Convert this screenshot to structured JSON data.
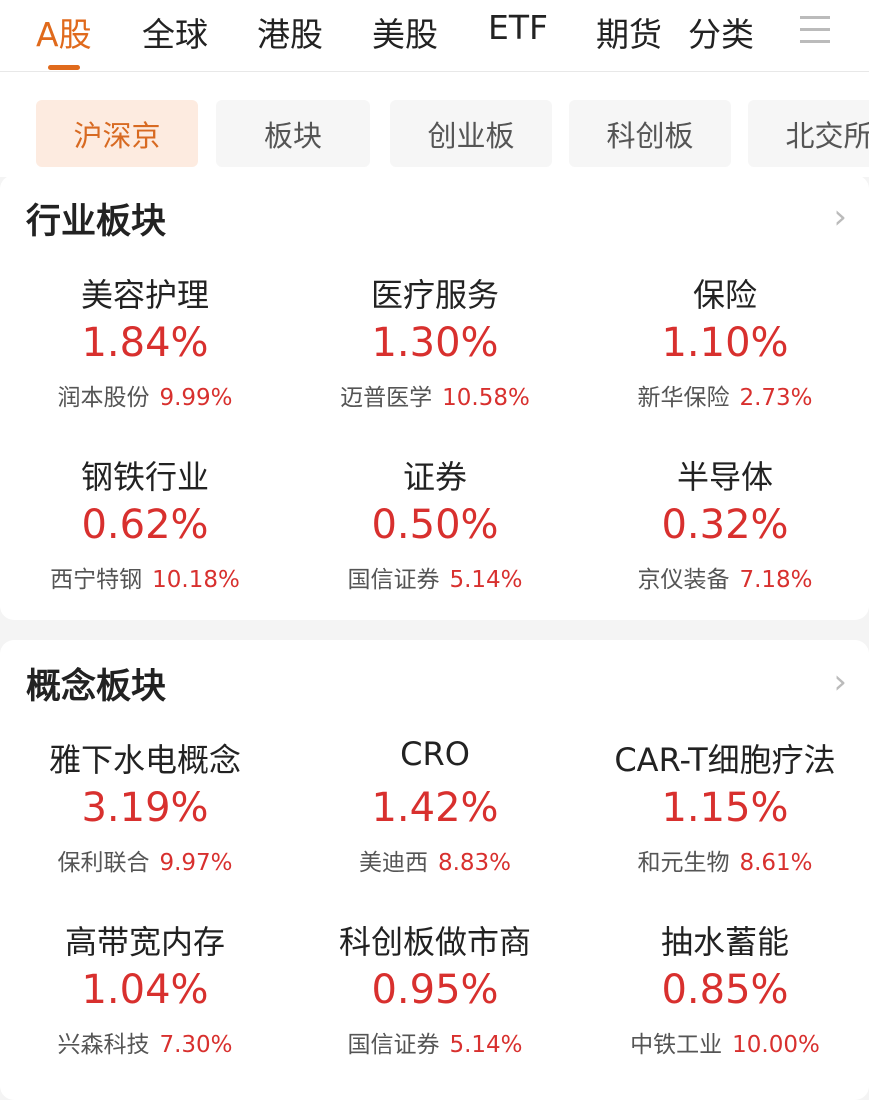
{
  "tabs": [
    "A股",
    "全球",
    "港股",
    "美股",
    "ETF",
    "期货",
    "分类"
  ],
  "subtabs": [
    "沪深京",
    "板块",
    "创业板",
    "科创板",
    "北交所"
  ],
  "colors": {
    "accent": "#e06a1c",
    "up": "#d8302e"
  },
  "industry": {
    "title": "行业板块",
    "items": [
      {
        "name": "美容护理",
        "pct": "1.84%",
        "stock": "润本股份",
        "stock_pct": "9.99%"
      },
      {
        "name": "医疗服务",
        "pct": "1.30%",
        "stock": "迈普医学",
        "stock_pct": "10.58%"
      },
      {
        "name": "保险",
        "pct": "1.10%",
        "stock": "新华保险",
        "stock_pct": "2.73%"
      },
      {
        "name": "钢铁行业",
        "pct": "0.62%",
        "stock": "西宁特钢",
        "stock_pct": "10.18%"
      },
      {
        "name": "证券",
        "pct": "0.50%",
        "stock": "国信证券",
        "stock_pct": "5.14%"
      },
      {
        "name": "半导体",
        "pct": "0.32%",
        "stock": "京仪装备",
        "stock_pct": "7.18%"
      }
    ]
  },
  "concept": {
    "title": "概念板块",
    "items": [
      {
        "name": "雅下水电概念",
        "pct": "3.19%",
        "stock": "保利联合",
        "stock_pct": "9.97%"
      },
      {
        "name": "CRO",
        "pct": "1.42%",
        "stock": "美迪西",
        "stock_pct": "8.83%"
      },
      {
        "name": "CAR-T细胞疗法",
        "pct": "1.15%",
        "stock": "和元生物",
        "stock_pct": "8.61%"
      },
      {
        "name": "高带宽内存",
        "pct": "1.04%",
        "stock": "兴森科技",
        "stock_pct": "7.30%"
      },
      {
        "name": "科创板做市商",
        "pct": "0.95%",
        "stock": "国信证券",
        "stock_pct": "5.14%"
      },
      {
        "name": "抽水蓄能",
        "pct": "0.85%",
        "stock": "中铁工业",
        "stock_pct": "10.00%"
      }
    ]
  }
}
